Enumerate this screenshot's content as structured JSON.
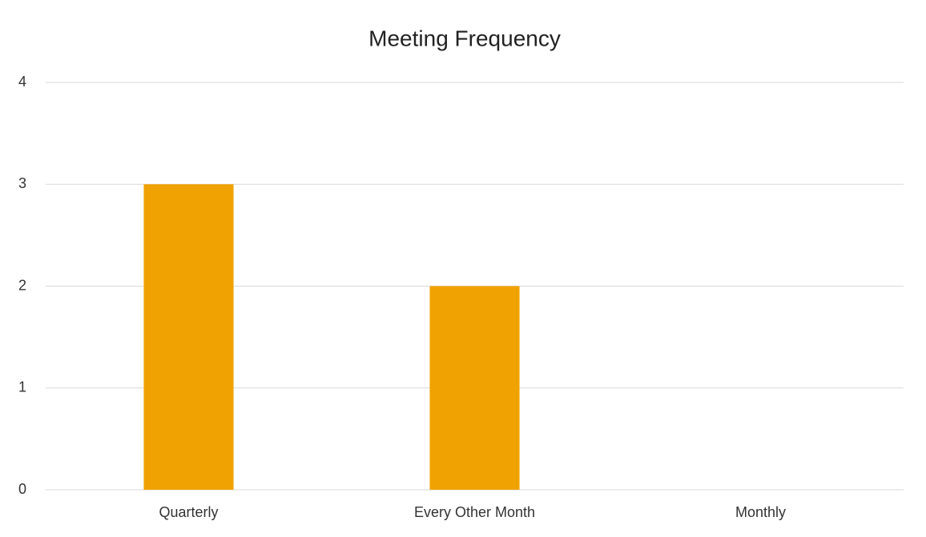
{
  "chart_data": {
    "type": "bar",
    "title": "Meeting Frequency",
    "categories": [
      "Quarterly",
      "Every Other Month",
      "Monthly"
    ],
    "values": [
      3,
      2,
      0
    ],
    "color": "#f0a202",
    "ylim": [
      0,
      4
    ],
    "yticks": [
      0,
      1,
      2,
      3,
      4
    ],
    "grid": true
  }
}
